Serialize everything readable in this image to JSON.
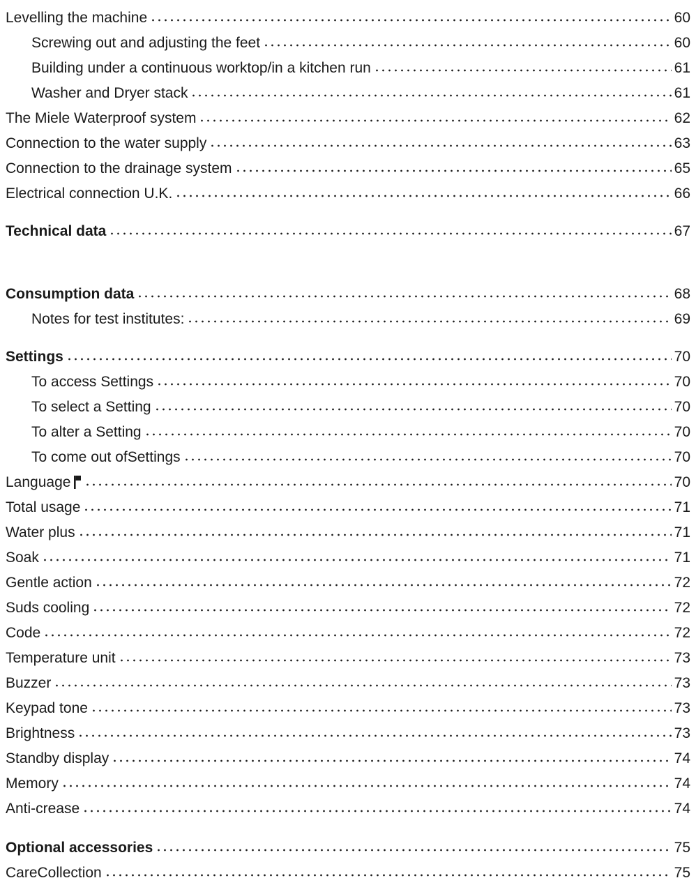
{
  "entries": [
    {
      "title": "Levelling the machine",
      "page": "60",
      "level": 0,
      "bold": false
    },
    {
      "title": "Screwing out and adjusting the feet",
      "page": "60",
      "level": 1,
      "bold": false
    },
    {
      "title": "Building under a continuous worktop/in a kitchen run",
      "page": "61",
      "level": 1,
      "bold": false
    },
    {
      "title": "Washer and Dryer stack",
      "page": "61",
      "level": 1,
      "bold": false
    },
    {
      "title": "The Miele Waterproof system",
      "page": "62",
      "level": 0,
      "bold": false
    },
    {
      "title": "Connection to the water supply",
      "page": "63",
      "level": 0,
      "bold": false
    },
    {
      "title": "Connection to the drainage system",
      "page": "65",
      "level": 0,
      "bold": false
    },
    {
      "title": "Electrical connection U.K.",
      "page": "66",
      "level": 0,
      "bold": false
    },
    {
      "title": "Technical data",
      "page": "67",
      "level": 0,
      "bold": true
    },
    {
      "title": "Consumption data",
      "page": "68",
      "level": 0,
      "bold": true
    },
    {
      "title": "Notes for test institutes:",
      "page": "69",
      "level": 1,
      "bold": false
    },
    {
      "title": "Settings",
      "page": "70",
      "level": 0,
      "bold": true
    },
    {
      "title": "To access Settings",
      "page": "70",
      "level": 1,
      "bold": false
    },
    {
      "title": "To select a Setting",
      "page": "70",
      "level": 1,
      "bold": false
    },
    {
      "title": "To alter a Setting",
      "page": "70",
      "level": 1,
      "bold": false
    },
    {
      "title": "To come out of ",
      "title_bold": "Settings",
      "page": "70",
      "level": 1,
      "bold": false
    },
    {
      "title": "Language",
      "icon": "flag-icon",
      "page": "70",
      "level": 0,
      "bold": false
    },
    {
      "title": "Total usage",
      "page": "71",
      "level": 0,
      "bold": false
    },
    {
      "title": "Water plus",
      "page": "71",
      "level": 0,
      "bold": false
    },
    {
      "title": "Soak",
      "page": "71",
      "level": 0,
      "bold": false
    },
    {
      "title": "Gentle action",
      "page": "72",
      "level": 0,
      "bold": false
    },
    {
      "title": "Suds cooling",
      "page": "72",
      "level": 0,
      "bold": false
    },
    {
      "title": "Code",
      "page": "72",
      "level": 0,
      "bold": false
    },
    {
      "title": "Temperature unit",
      "page": "73",
      "level": 0,
      "bold": false
    },
    {
      "title": "Buzzer",
      "page": "73",
      "level": 0,
      "bold": false
    },
    {
      "title": "Keypad tone",
      "page": "73",
      "level": 0,
      "bold": false
    },
    {
      "title": "Brightness",
      "page": "73",
      "level": 0,
      "bold": false
    },
    {
      "title": "Standby display",
      "page": "74",
      "level": 0,
      "bold": false
    },
    {
      "title": "Memory",
      "page": "74",
      "level": 0,
      "bold": false
    },
    {
      "title": "Anti-crease",
      "page": "74",
      "level": 0,
      "bold": false
    },
    {
      "title": "Optional accessories",
      "page": "75",
      "level": 0,
      "bold": true
    },
    {
      "title": "CareCollection",
      "page": "75",
      "level": 0,
      "bold": false
    }
  ]
}
